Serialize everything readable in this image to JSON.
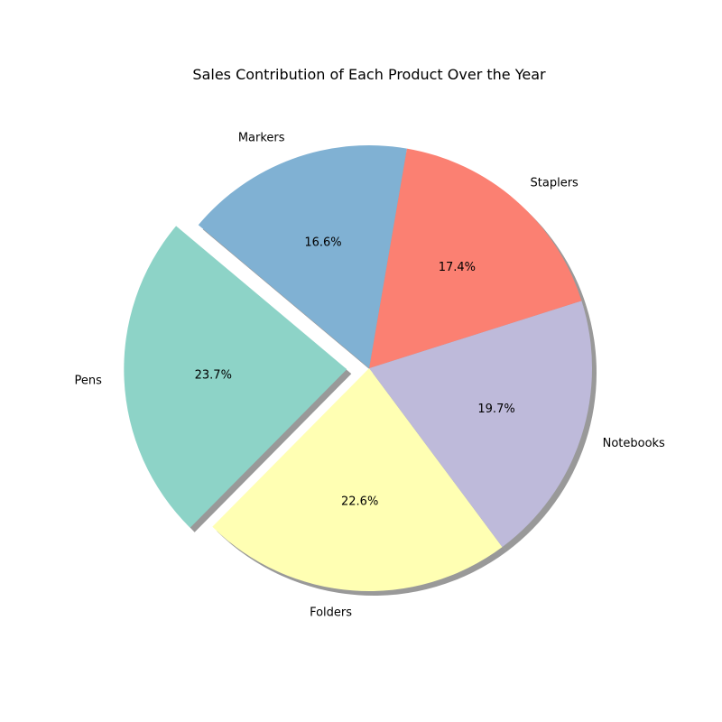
{
  "chart_data": {
    "type": "pie",
    "title": "Sales Contribution of Each Product Over the Year",
    "labels": [
      "Pens",
      "Folders",
      "Notebooks",
      "Staplers",
      "Markers"
    ],
    "values": [
      23.7,
      22.6,
      19.7,
      17.4,
      16.6
    ],
    "percent_labels": [
      "23.7%",
      "22.6%",
      "19.7%",
      "17.4%",
      "16.6%"
    ],
    "colors": [
      "#8dd3c7",
      "#ffffb3",
      "#bebada",
      "#fb8072",
      "#80b1d3"
    ],
    "exploded": [
      "Pens"
    ],
    "shadow": true,
    "start_angle_deg": 140,
    "direction": "counterclockwise"
  }
}
